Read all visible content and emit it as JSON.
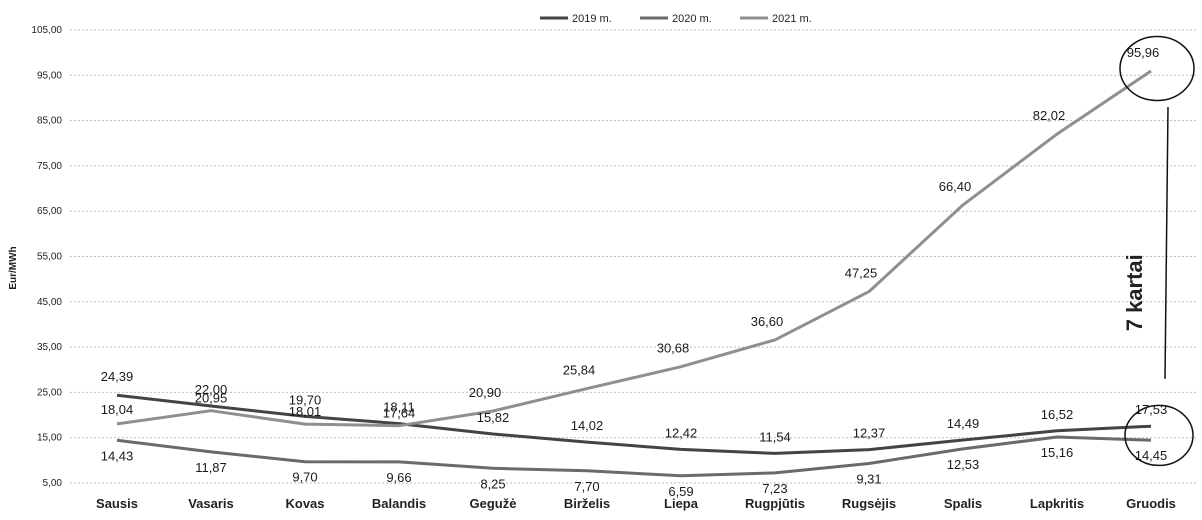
{
  "chart_data": {
    "type": "line",
    "ylabel": "Eur/MWh",
    "ylim": [
      5,
      105
    ],
    "yticks": [
      "5,00",
      "15,00",
      "25,00",
      "35,00",
      "45,00",
      "55,00",
      "65,00",
      "75,00",
      "85,00",
      "95,00",
      "105,00"
    ],
    "categories": [
      "Sausis",
      "Vasaris",
      "Kovas",
      "Balandis",
      "Gegužė",
      "Birželis",
      "Liepa",
      "Rugpjūtis",
      "Rugsėjis",
      "Spalis",
      "Lapkritis",
      "Gruodis"
    ],
    "legend_position": "top-center",
    "grid": true,
    "series": [
      {
        "name": "2019 m.",
        "color": "#444444",
        "values": [
          24.39,
          22.0,
          19.7,
          18.11,
          15.82,
          14.02,
          12.42,
          11.54,
          12.37,
          14.49,
          16.52,
          17.53
        ],
        "labels": [
          "24,39",
          "22,00",
          "19,70",
          "18,11",
          "15,82",
          "14,02",
          "12,42",
          "11,54",
          "12,37",
          "14,49",
          "16,52",
          "17,53"
        ]
      },
      {
        "name": "2020 m.",
        "color": "#6a6a6a",
        "values": [
          14.43,
          11.87,
          9.7,
          9.66,
          8.25,
          7.7,
          6.59,
          7.23,
          9.31,
          12.53,
          15.16,
          14.45
        ],
        "labels": [
          "14,43",
          "11,87",
          "9,70",
          "9,66",
          "8,25",
          "7,70",
          "6,59",
          "7,23",
          "9,31",
          "12,53",
          "15,16",
          "14,45"
        ]
      },
      {
        "name": "2021 m.",
        "color": "#8f8f8f",
        "values": [
          18.04,
          20.95,
          18.01,
          17.64,
          20.9,
          25.84,
          30.68,
          36.6,
          47.25,
          66.4,
          82.02,
          95.96
        ],
        "labels": [
          "18,04",
          "20,95",
          "18,01",
          "17,64",
          "20,90",
          "25,84",
          "30,68",
          "36,60",
          "47,25",
          "66,40",
          "82,02",
          "95,96"
        ]
      }
    ],
    "annotations": {
      "ratio_text": "7 kartai"
    }
  }
}
